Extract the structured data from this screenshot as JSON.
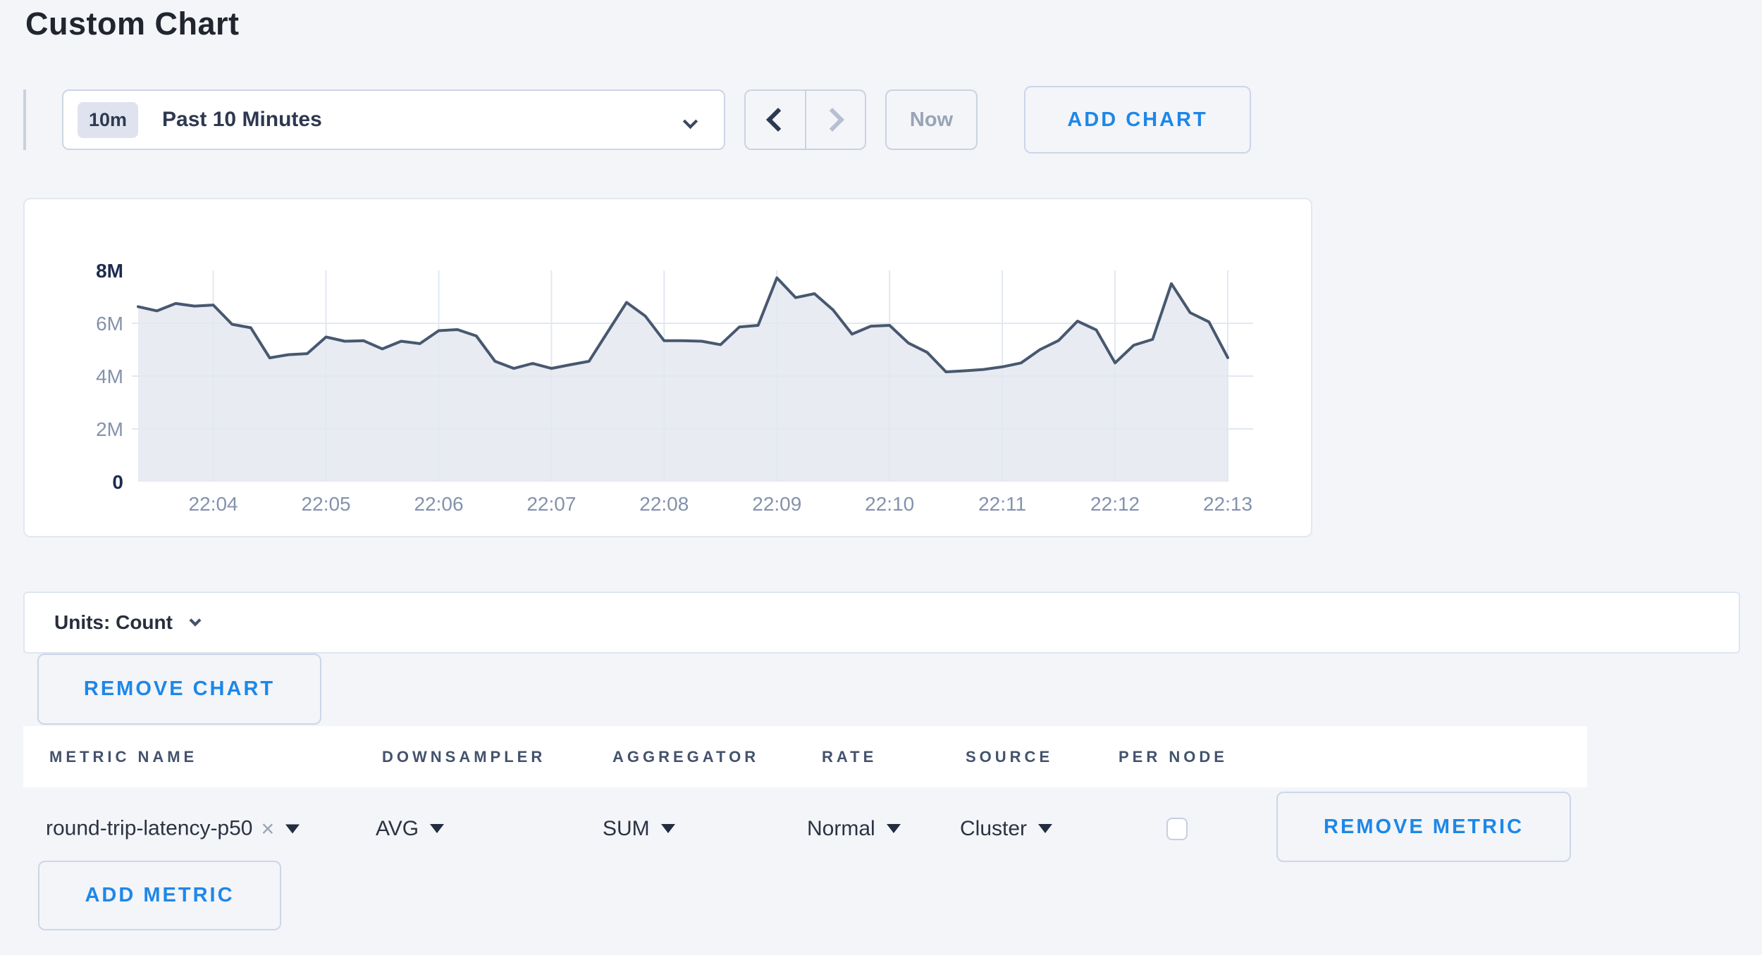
{
  "page": {
    "title": "Custom Chart"
  },
  "toolbar": {
    "time_scale_badge": "10m",
    "time_scale_label": "Past 10 Minutes",
    "now_label": "Now",
    "add_chart_label": "ADD CHART",
    "icons": [
      "chevron-down-icon",
      "chevron-left-icon",
      "chevron-right-icon"
    ]
  },
  "chart_data": {
    "type": "area",
    "title": "",
    "unit": "Count",
    "x_start_time": "22:03:20",
    "x_interval_seconds": 10,
    "x_tick_labels": [
      "22:04",
      "22:05",
      "22:06",
      "22:07",
      "22:08",
      "22:09",
      "22:10",
      "22:11",
      "22:12",
      "22:13"
    ],
    "x_tick_start_index": 4,
    "x_tick_step": 6,
    "ylim": [
      0,
      8000000
    ],
    "y_ticks": [
      {
        "label": "8M",
        "value": 8000000,
        "strong": true,
        "gridline": false
      },
      {
        "label": "6M",
        "value": 6000000,
        "strong": false,
        "gridline": true
      },
      {
        "label": "4M",
        "value": 4000000,
        "strong": false,
        "gridline": true
      },
      {
        "label": "2M",
        "value": 2000000,
        "strong": false,
        "gridline": true
      },
      {
        "label": "0",
        "value": 0,
        "strong": true,
        "gridline": false
      }
    ],
    "values": [
      6630000,
      6470000,
      6750000,
      6650000,
      6690000,
      5960000,
      5830000,
      4690000,
      4810000,
      4850000,
      5480000,
      5320000,
      5340000,
      5030000,
      5320000,
      5230000,
      5720000,
      5760000,
      5520000,
      4560000,
      4290000,
      4480000,
      4290000,
      4430000,
      4560000,
      5680000,
      6790000,
      6270000,
      5340000,
      5340000,
      5320000,
      5190000,
      5860000,
      5920000,
      7720000,
      6970000,
      7120000,
      6500000,
      5590000,
      5890000,
      5920000,
      5250000,
      4900000,
      4160000,
      4200000,
      4250000,
      4350000,
      4500000,
      5000000,
      5350000,
      6080000,
      5750000,
      4500000,
      5170000,
      5390000,
      7500000,
      6400000,
      6050000,
      4700000
    ],
    "grid": true,
    "legend": false,
    "line_color": "#47586f",
    "fill_color": "#e9ebf2",
    "gridline_color": "#e2e8f1",
    "tick_label_color": "#8492ac",
    "strong_tick_label_color": "#1d2c4e"
  },
  "units_bar": {
    "label": "Units: Count",
    "icon": "chevron-down-icon"
  },
  "chart_actions": {
    "remove_chart_label": "REMOVE CHART"
  },
  "metrics_table": {
    "headers": [
      "METRIC NAME",
      "DOWNSAMPLER",
      "AGGREGATOR",
      "RATE",
      "SOURCE",
      "PER NODE"
    ],
    "rows": [
      {
        "metric_name": "round-trip-latency-p50",
        "clear_icon": "×",
        "downsampler": "AVG",
        "aggregator": "SUM",
        "rate": "Normal",
        "source": "Cluster",
        "per_node_checked": false,
        "remove_metric_label": "REMOVE METRIC"
      }
    ]
  },
  "table_actions": {
    "add_metric_label": "ADD METRIC"
  },
  "colors": {
    "accent_blue": "#1e87e8"
  }
}
